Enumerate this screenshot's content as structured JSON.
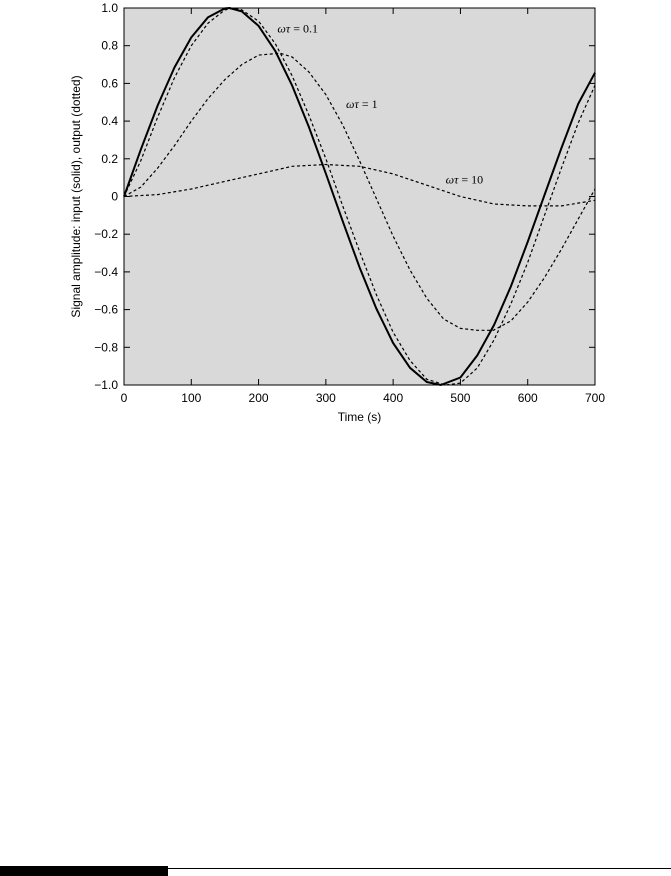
{
  "chart_data": {
    "type": "line",
    "title": "",
    "xlabel": "Time (s)",
    "ylabel": "Signal amplitude: input (solid), output (dotted)",
    "xlim": [
      0,
      700
    ],
    "ylim": [
      -1.0,
      1.0
    ],
    "x_ticks": [
      0,
      100,
      200,
      300,
      400,
      500,
      600,
      700
    ],
    "x_tick_labels": [
      "0",
      "100",
      "200",
      "300",
      "400",
      "500",
      "600",
      "700"
    ],
    "y_ticks": [
      1.0,
      0.8,
      0.6,
      0.4,
      0.2,
      0,
      -0.2,
      -0.4,
      -0.6,
      -0.8,
      -1.0
    ],
    "y_tick_labels": [
      "1.0",
      "0.8",
      "0.6",
      "0.4",
      "0.2",
      "0",
      "−0.2",
      "−0.4",
      "−0.6",
      "−0.8",
      "−1.0"
    ],
    "grid": false,
    "background_color": "#d9d9d9",
    "series": [
      {
        "style": "solid",
        "x": [
          0,
          25,
          50,
          75,
          100,
          125,
          150,
          157,
          175,
          200,
          225,
          250,
          275,
          300,
          325,
          350,
          375,
          400,
          425,
          450,
          471,
          500,
          525,
          550,
          575,
          600,
          625,
          650,
          675,
          700
        ],
        "y": [
          0,
          0.249,
          0.482,
          0.685,
          0.844,
          0.951,
          0.998,
          1.0,
          0.982,
          0.905,
          0.771,
          0.588,
          0.367,
          0.121,
          -0.131,
          -0.375,
          -0.594,
          -0.777,
          -0.909,
          -0.984,
          -1.0,
          -0.96,
          -0.843,
          -0.681,
          -0.477,
          -0.241,
          0.008,
          0.257,
          0.491,
          0.657
        ]
      },
      {
        "style": "dotted",
        "x": [
          0,
          25,
          50,
          75,
          100,
          125,
          150,
          164,
          175,
          200,
          225,
          250,
          275,
          300,
          325,
          350,
          375,
          400,
          425,
          450,
          478,
          500,
          525,
          550,
          575,
          600,
          625,
          650,
          675,
          700
        ],
        "y": [
          0,
          0.19,
          0.42,
          0.63,
          0.8,
          0.92,
          0.99,
          1.0,
          0.99,
          0.93,
          0.81,
          0.64,
          0.43,
          0.2,
          -0.05,
          -0.29,
          -0.52,
          -0.72,
          -0.87,
          -0.97,
          -1.0,
          -0.99,
          -0.91,
          -0.76,
          -0.57,
          -0.35,
          -0.1,
          0.15,
          0.39,
          0.59
        ]
      },
      {
        "style": "dotted",
        "x": [
          0,
          25,
          50,
          75,
          100,
          125,
          150,
          175,
          200,
          232,
          250,
          275,
          300,
          325,
          350,
          375,
          400,
          425,
          450,
          475,
          500,
          525,
          549,
          575,
          600,
          625,
          650,
          675,
          700
        ],
        "y": [
          0,
          0.05,
          0.15,
          0.27,
          0.4,
          0.52,
          0.62,
          0.7,
          0.75,
          0.76,
          0.74,
          0.66,
          0.54,
          0.38,
          0.19,
          -0.01,
          -0.21,
          -0.39,
          -0.54,
          -0.65,
          -0.7,
          -0.71,
          -0.71,
          -0.66,
          -0.56,
          -0.43,
          -0.28,
          -0.12,
          0.04
        ]
      },
      {
        "style": "dotted",
        "x": [
          0,
          50,
          100,
          150,
          200,
          250,
          300,
          350,
          400,
          450,
          500,
          550,
          600,
          650,
          700
        ],
        "y": [
          0,
          0.01,
          0.04,
          0.08,
          0.12,
          0.16,
          0.17,
          0.16,
          0.12,
          0.06,
          0.0,
          -0.04,
          -0.05,
          -0.05,
          -0.02
        ]
      }
    ],
    "annotations": [
      {
        "symbol": "ωτ",
        "text": " = 0.1",
        "x": 228,
        "y": 0.87
      },
      {
        "symbol": "ωτ",
        "text": " = 1",
        "x": 330,
        "y": 0.47
      },
      {
        "symbol": "ωτ",
        "text": " = 10",
        "x": 478,
        "y": 0.07
      }
    ]
  }
}
